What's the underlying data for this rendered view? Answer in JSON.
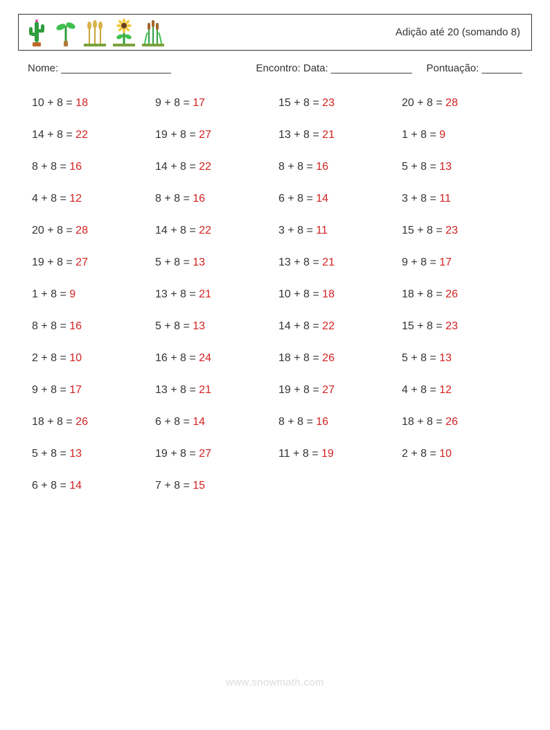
{
  "title": "Adição até 20 (somando 8)",
  "meta": {
    "name_label": "Nome: ___________________",
    "date_label": "Encontro: Data: ______________",
    "score_label": "Pontuação: _______"
  },
  "watermark": "www.snowmath.com",
  "styling": {
    "text_color": "#333333",
    "answer_color": "#d22020",
    "watermark_color": "#dcdcdc",
    "border_color": "#333333",
    "background": "#ffffff",
    "font_family": "Arial, Helvetica, sans-serif",
    "title_fontsize": 15,
    "problem_fontsize": 16,
    "columns": 4,
    "row_gap": 28
  },
  "addend": 8,
  "problems": [
    [
      10,
      14,
      8,
      4,
      20,
      19,
      1,
      8,
      2,
      9,
      18,
      5,
      6
    ],
    [
      9,
      19,
      14,
      8,
      14,
      5,
      13,
      5,
      16,
      13,
      6,
      19,
      7
    ],
    [
      15,
      13,
      8,
      6,
      3,
      13,
      10,
      14,
      18,
      19,
      8,
      11
    ],
    [
      20,
      1,
      5,
      3,
      15,
      9,
      18,
      15,
      5,
      4,
      18,
      2
    ]
  ],
  "icons": [
    {
      "name": "cactus-icon"
    },
    {
      "name": "sprout-icon"
    },
    {
      "name": "wheat-icon"
    },
    {
      "name": "sunflower-icon"
    },
    {
      "name": "reeds-icon"
    }
  ]
}
